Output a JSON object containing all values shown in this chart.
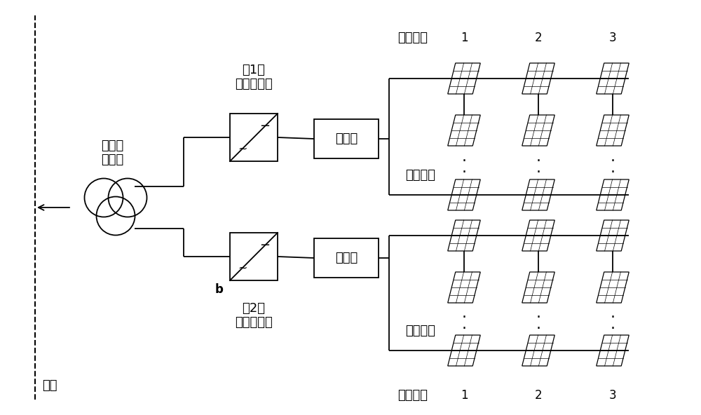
{
  "bg_color": "#ffffff",
  "line_color": "#000000",
  "text_color": "#000000",
  "fig_width": 10.0,
  "fig_height": 5.92,
  "dpi": 100,
  "lw": 1.3,
  "labels": {
    "busbar": "母线",
    "transformer": "三绕组\n变压器",
    "inverter1_label": "第1路\n三相逆变器",
    "inverter2_label": "第2路\n三相逆变器",
    "combiner1": "汇流筱",
    "combiner2": "汇流筱",
    "pv_array1": "光伏阵列",
    "pv_array2": "光伏阵列",
    "string_label_top": "组串序号",
    "string_label_bottom": "组串序号",
    "b_label": "b"
  },
  "font_size_main": 13,
  "font_size_num": 12,
  "font_size_b": 12
}
